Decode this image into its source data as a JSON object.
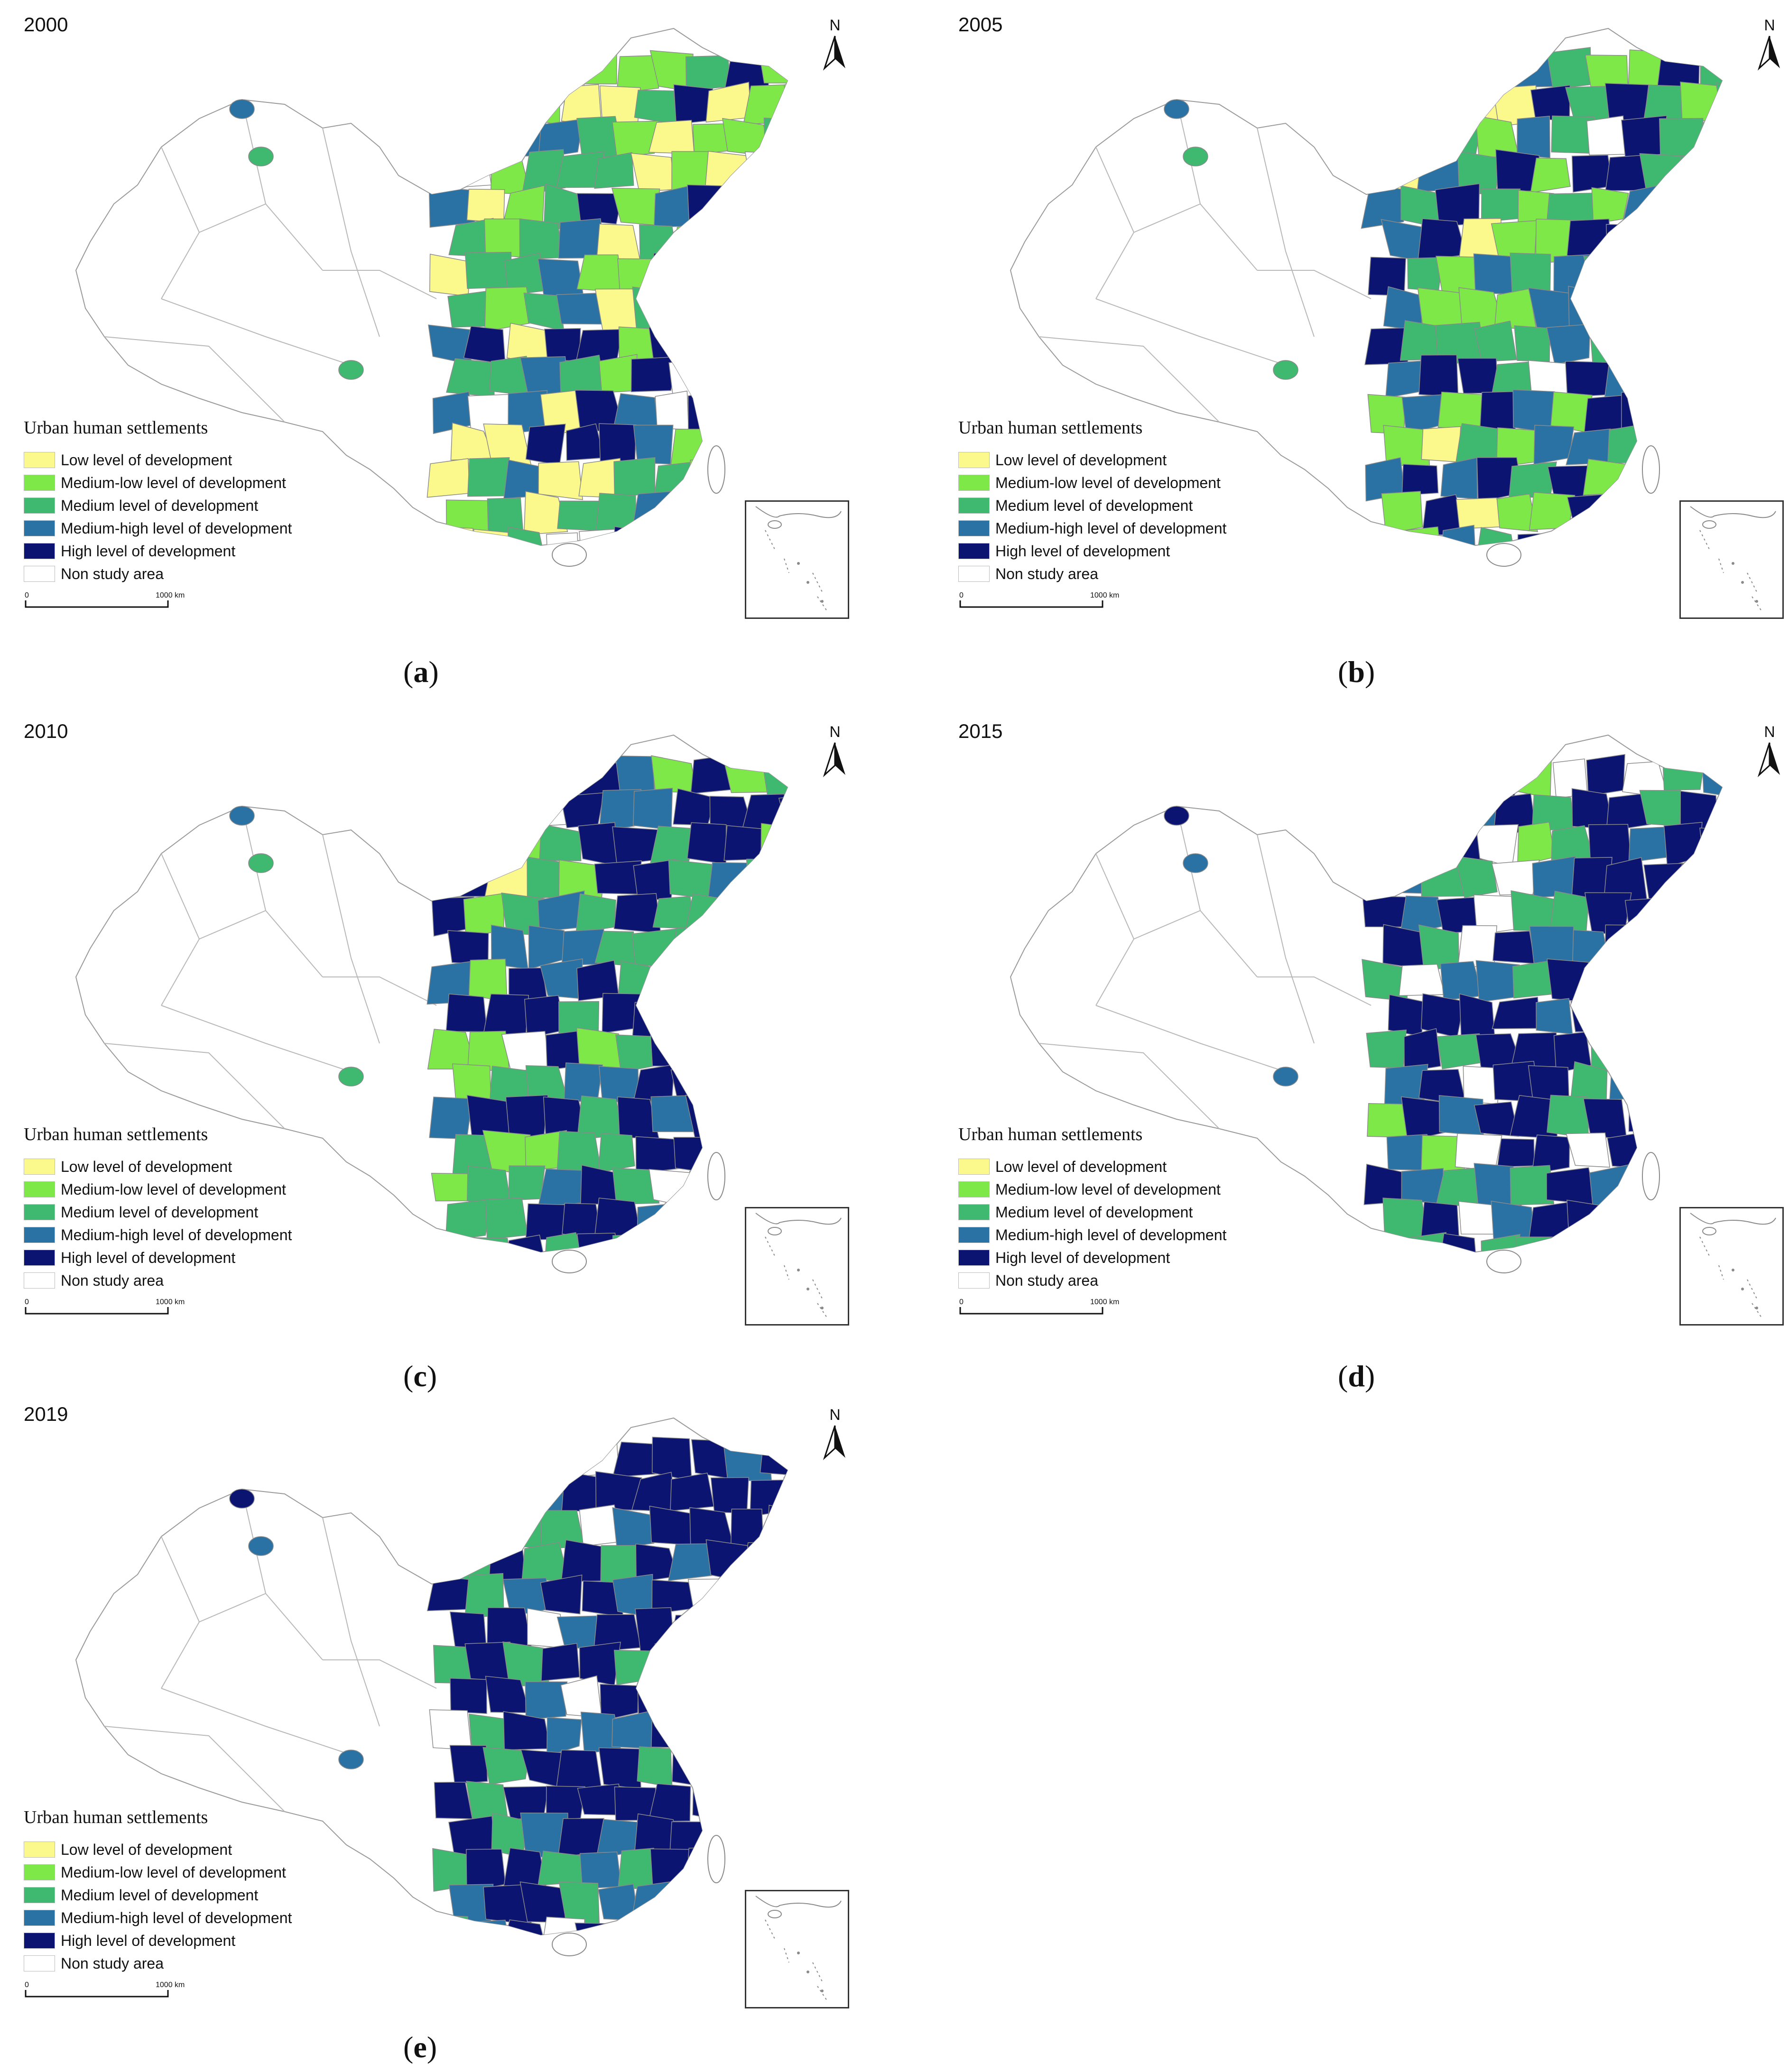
{
  "legend": {
    "title": "Urban human settlements",
    "items": [
      {
        "label": "Low level of development",
        "color": "#fbf98c"
      },
      {
        "label": "Medium-low level of development",
        "color": "#7ee848"
      },
      {
        "label": "Medium level of development",
        "color": "#3fb870"
      },
      {
        "label": "Medium-high level of development",
        "color": "#2a72a4"
      },
      {
        "label": "High level of development",
        "color": "#0c1472"
      },
      {
        "label": "Non study area",
        "color": "#ffffff"
      }
    ]
  },
  "scale": {
    "zero": "0",
    "distance": "1000 km"
  },
  "north_label": "N",
  "panels": [
    {
      "year": "2000",
      "caption_open": "(",
      "caption_letter": "a",
      "caption_close": ")"
    },
    {
      "year": "2005",
      "caption_open": "(",
      "caption_letter": "b",
      "caption_close": ")"
    },
    {
      "year": "2010",
      "caption_open": "(",
      "caption_letter": "c",
      "caption_close": ")"
    },
    {
      "year": "2015",
      "caption_open": "(",
      "caption_letter": "d",
      "caption_close": ")"
    },
    {
      "year": "2019",
      "caption_open": "(",
      "caption_letter": "e",
      "caption_close": ")"
    }
  ]
}
